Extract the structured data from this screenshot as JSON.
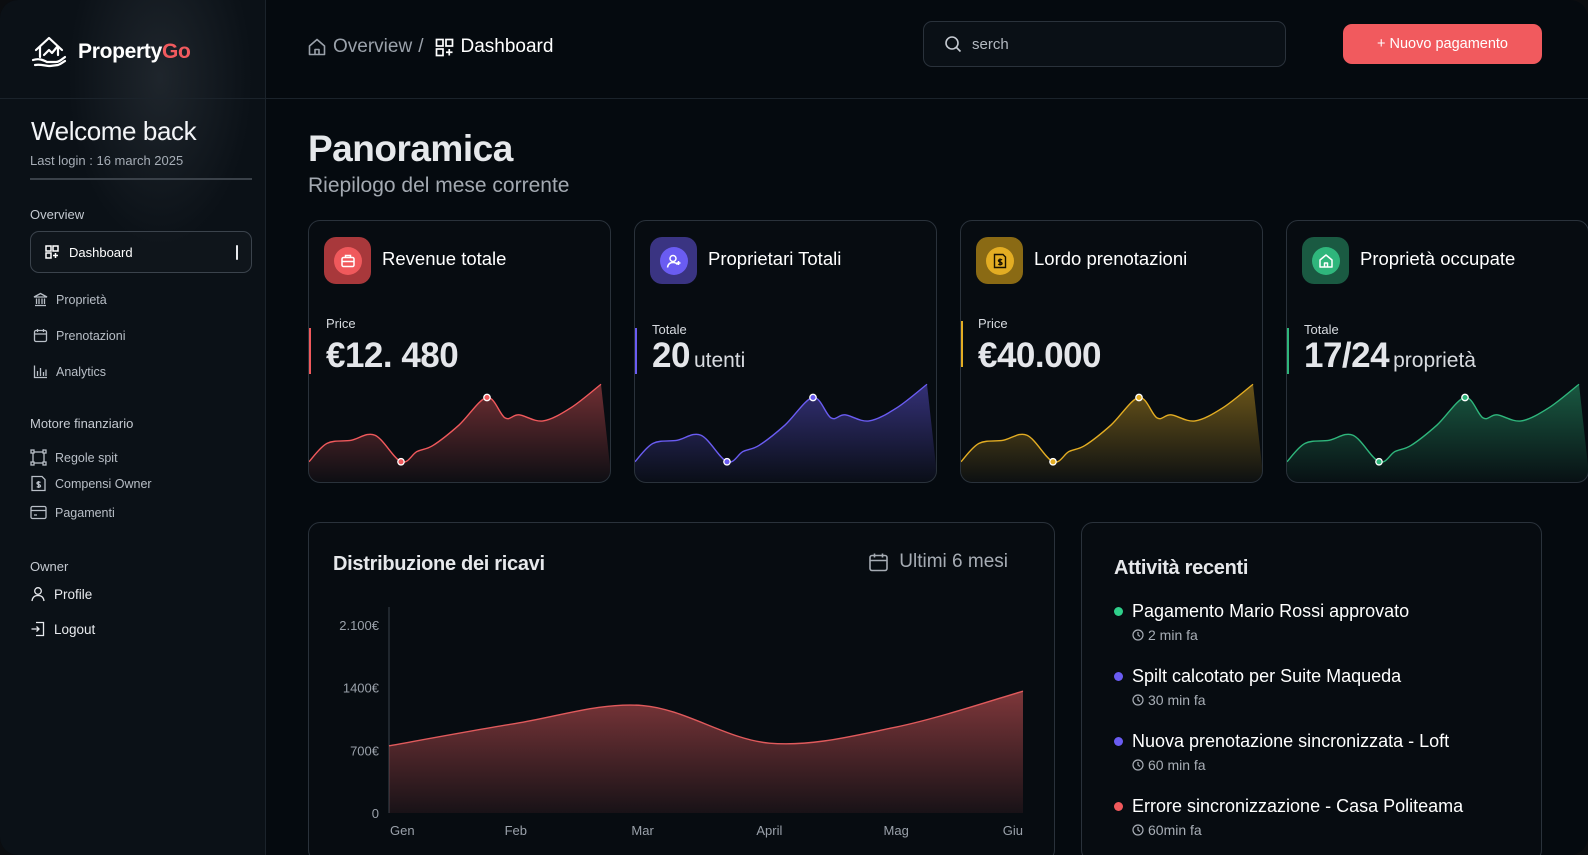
{
  "brand": {
    "name_main": "Property",
    "name_accent": "Go",
    "accent_color": "#f15a5e"
  },
  "sidebar": {
    "welcome": "Welcome back",
    "last_login": "Last login : 16 march 2025",
    "sections": {
      "overview": "Overview",
      "finance": "Motore finanziario",
      "owner": "Owner"
    },
    "overview_items": [
      {
        "label": "Dashboard",
        "icon": "grid-icon",
        "active": true
      },
      {
        "label": "Proprietà",
        "icon": "building-icon"
      },
      {
        "label": "Prenotazioni",
        "icon": "calendar-icon"
      },
      {
        "label": "Analytics",
        "icon": "bar-chart-icon"
      }
    ],
    "finance_items": [
      {
        "label": "Regole spit",
        "icon": "split-icon"
      },
      {
        "label": "Compensi Owner",
        "icon": "invoice-icon"
      },
      {
        "label": "Pagamenti",
        "icon": "card-icon"
      }
    ],
    "owner_items": [
      {
        "label": "Profile",
        "icon": "user-icon"
      },
      {
        "label": "Logout",
        "icon": "logout-icon"
      }
    ]
  },
  "header": {
    "breadcrumb": {
      "first": "Overview",
      "separator": "/",
      "current": "Dashboard"
    },
    "search_placeholder": "serch",
    "primary_button": "+ Nuovo pagamento"
  },
  "page": {
    "title": "Panoramica",
    "subtitle": "Riepilogo del mese corrente"
  },
  "stats": [
    {
      "title": "Revenue totale",
      "label": "Price",
      "value": "€12. 480",
      "unit": "",
      "color": "#f0595c",
      "icon": "briefcase-icon",
      "sparkline": [
        12,
        30,
        33,
        38,
        12,
        22,
        28,
        48,
        75,
        55,
        58,
        52,
        65,
        88
      ]
    },
    {
      "title": "Proprietari Totali",
      "label": "Totale",
      "value": "20",
      "unit": "utenti",
      "color": "#6a5cf2",
      "icon": "user-icon",
      "sparkline": [
        12,
        30,
        33,
        38,
        12,
        22,
        28,
        48,
        75,
        55,
        58,
        52,
        65,
        88
      ]
    },
    {
      "title": "Lordo prenotazioni",
      "label": "Price",
      "value": "€40.000",
      "unit": "",
      "color": "#e3ad23",
      "icon": "invoice-icon",
      "sparkline": [
        12,
        30,
        33,
        38,
        12,
        22,
        28,
        48,
        75,
        55,
        58,
        52,
        65,
        88
      ]
    },
    {
      "title": "Proprietà occupate",
      "label": "Totale",
      "value": "17/24",
      "unit": "proprietà",
      "color": "#2fb67c",
      "icon": "home-icon",
      "sparkline": [
        12,
        30,
        33,
        38,
        12,
        22,
        28,
        48,
        75,
        55,
        58,
        52,
        65,
        88
      ]
    }
  ],
  "chart_data": {
    "type": "area",
    "title": "Distribuzione dei ricavi",
    "range_label": "Ultimi 6 mesi",
    "categories": [
      "Gen",
      "Feb",
      "Mar",
      "April",
      "Mag",
      "Giu"
    ],
    "y_tick_labels": [
      "0",
      "700€",
      "1400€",
      "2.100€"
    ],
    "y_ticks": [
      0,
      700,
      1400,
      2100
    ],
    "ylim": [
      0,
      2300
    ],
    "values": [
      750,
      1000,
      1200,
      780,
      960,
      1360
    ],
    "color": "#e05a5c"
  },
  "activity": {
    "title": "Attività recenti",
    "items": [
      {
        "text": "Pagamento Mario Rossi approvato",
        "time": "2 min fa",
        "color": "#2fcf8a"
      },
      {
        "text": "Spilt calcotato per Suite Maqueda",
        "time": "30 min fa",
        "color": "#6a5cf2"
      },
      {
        "text": "Nuova prenotazione sincronizzata - Loft",
        "time": "60 min fa",
        "color": "#6a5cf2"
      },
      {
        "text": "Errore sincronizzazione  - Casa Politeama",
        "time": "60min fa",
        "color": "#f0595c"
      }
    ]
  }
}
